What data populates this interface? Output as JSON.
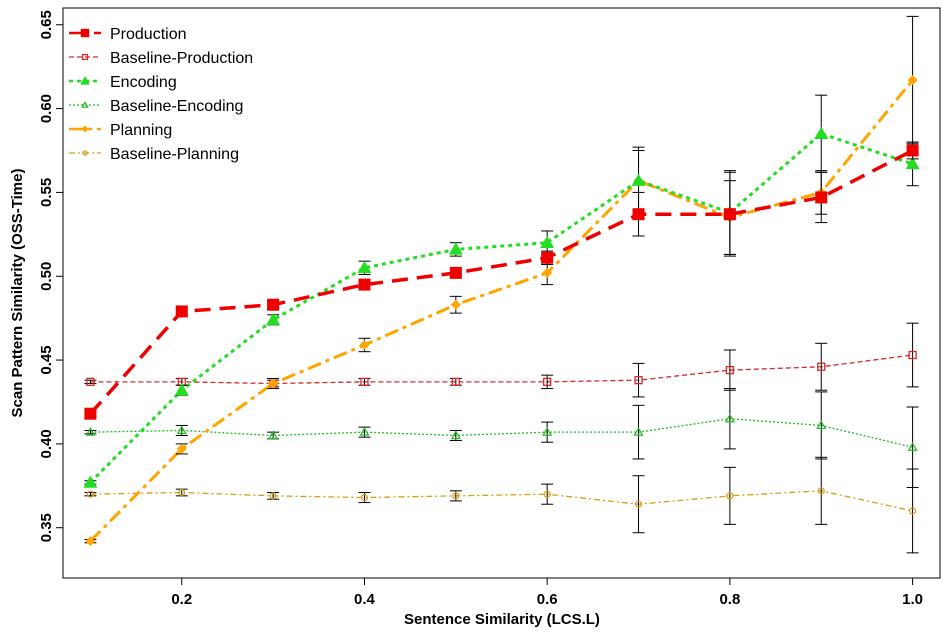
{
  "chart_data": {
    "type": "line",
    "xlabel": "Sentence Similarity (LCS.L)",
    "ylabel": "Scan Pattern Similarity (OSS-Time)",
    "xlim": [
      0.07,
      1.03
    ],
    "ylim": [
      0.32,
      0.66
    ],
    "xticks": [
      0.2,
      0.4,
      0.6,
      0.8,
      1.0
    ],
    "xtick_labels": [
      "0.2",
      "0.4",
      "0.6",
      "0.8",
      "1.0"
    ],
    "yticks": [
      0.35,
      0.4,
      0.45,
      0.5,
      0.55,
      0.6,
      0.65
    ],
    "ytick_labels": [
      "0.35",
      "0.40",
      "0.45",
      "0.50",
      "0.55",
      "0.60",
      "0.65"
    ],
    "legend_position": "top-left",
    "grid": false,
    "x": [
      0.1,
      0.2,
      0.3,
      0.4,
      0.5,
      0.6,
      0.7,
      0.8,
      0.9,
      1.0
    ],
    "series": [
      {
        "name": "Production",
        "color": "#ee0000",
        "marker": "square-filled",
        "line": "dashed-thick",
        "values": [
          0.418,
          0.479,
          0.483,
          0.495,
          0.502,
          0.511,
          0.537,
          0.537,
          0.547,
          0.575
        ],
        "errors": [
          0.002,
          0.002,
          0.002,
          0.002,
          0.002,
          0.004,
          0.013,
          0.025,
          0.015,
          0.005
        ]
      },
      {
        "name": "Baseline-Production",
        "color": "#d42a2a",
        "marker": "square-open",
        "line": "dashed-thin",
        "values": [
          0.437,
          0.437,
          0.436,
          0.437,
          0.437,
          0.437,
          0.438,
          0.444,
          0.446,
          0.453
        ],
        "errors": [
          0.001,
          0.002,
          0.002,
          0.002,
          0.002,
          0.004,
          0.01,
          0.012,
          0.014,
          0.019
        ]
      },
      {
        "name": "Encoding",
        "color": "#22dd22",
        "marker": "triangle-filled",
        "line": "dotted-thick",
        "values": [
          0.377,
          0.432,
          0.474,
          0.505,
          0.516,
          0.52,
          0.557,
          0.538,
          0.585,
          0.567
        ],
        "errors": [
          0.001,
          0.003,
          0.003,
          0.004,
          0.004,
          0.007,
          0.018,
          0.025,
          0.023,
          0.013
        ]
      },
      {
        "name": "Baseline-Encoding",
        "color": "#22bb22",
        "marker": "triangle-open",
        "line": "dotted-thin",
        "values": [
          0.407,
          0.408,
          0.405,
          0.407,
          0.405,
          0.407,
          0.407,
          0.415,
          0.411,
          0.398
        ],
        "errors": [
          0.001,
          0.003,
          0.002,
          0.003,
          0.003,
          0.006,
          0.016,
          0.018,
          0.02,
          0.024
        ]
      },
      {
        "name": "Planning",
        "color": "#ffa500",
        "marker": "diamond-filled",
        "line": "dashdot-thick",
        "values": [
          0.342,
          0.397,
          0.436,
          0.459,
          0.483,
          0.502,
          0.557,
          0.535,
          0.55,
          0.617
        ],
        "errors": [
          0.001,
          0.003,
          0.003,
          0.004,
          0.005,
          0.007,
          0.02,
          0.022,
          0.013,
          0.038
        ]
      },
      {
        "name": "Baseline-Planning",
        "color": "#d4a017",
        "marker": "circle-open",
        "line": "dashdot-thin",
        "values": [
          0.37,
          0.371,
          0.369,
          0.368,
          0.369,
          0.37,
          0.364,
          0.369,
          0.372,
          0.36
        ],
        "errors": [
          0.001,
          0.002,
          0.002,
          0.003,
          0.003,
          0.006,
          0.017,
          0.017,
          0.02,
          0.025
        ]
      }
    ]
  }
}
